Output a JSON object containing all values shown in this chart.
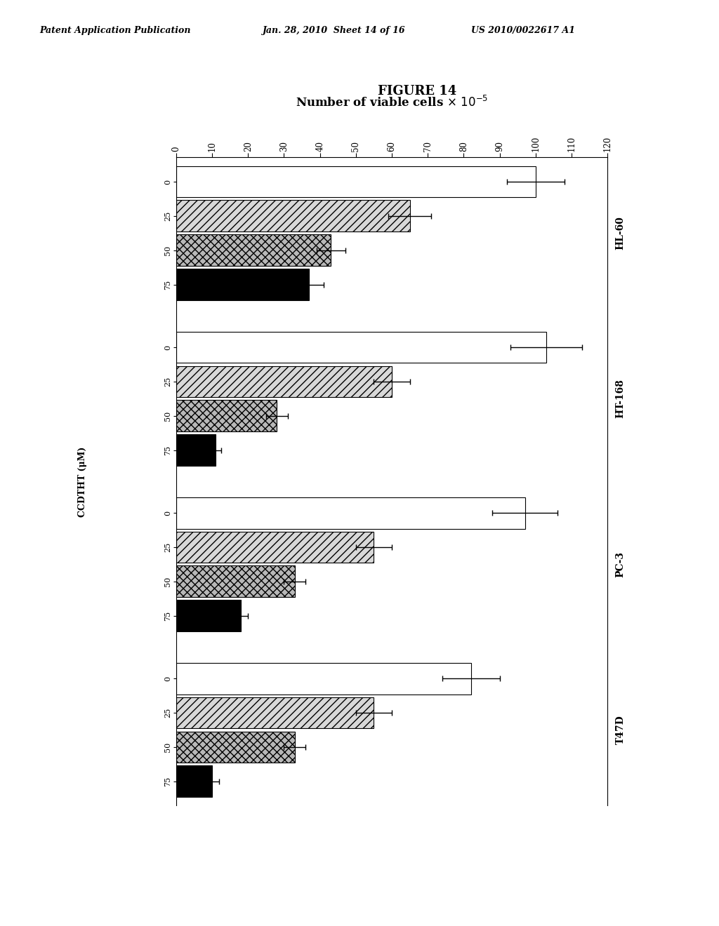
{
  "header_left": "Patent Application Publication",
  "header_mid": "Jan. 28, 2010  Sheet 14 of 16",
  "header_right": "US 2010/0022617 A1",
  "figure_title": "FIGURE 14",
  "chart_xlabel": "Number of viable cells x 10",
  "chart_xlabel_exp": "-5",
  "ylabel_text": "CCDTHT (μM)",
  "xlim": [
    0,
    120
  ],
  "xticks": [
    0,
    10,
    20,
    30,
    40,
    50,
    60,
    70,
    80,
    90,
    100,
    110,
    120
  ],
  "groups": [
    "HL-60",
    "HT-168",
    "PC-3",
    "T47D"
  ],
  "doses": [
    "0",
    "25",
    "50",
    "75"
  ],
  "bar_values": {
    "HL-60": [
      100,
      65,
      43,
      37
    ],
    "HT-168": [
      103,
      60,
      28,
      11
    ],
    "PC-3": [
      97,
      55,
      33,
      18
    ],
    "T47D": [
      82,
      55,
      33,
      10
    ]
  },
  "bar_errors": {
    "HL-60": [
      8,
      6,
      4,
      4
    ],
    "HT-168": [
      10,
      5,
      3,
      1.5
    ],
    "PC-3": [
      9,
      5,
      3,
      2
    ],
    "T47D": [
      8,
      5,
      3,
      2
    ]
  },
  "background_color": "#ffffff"
}
